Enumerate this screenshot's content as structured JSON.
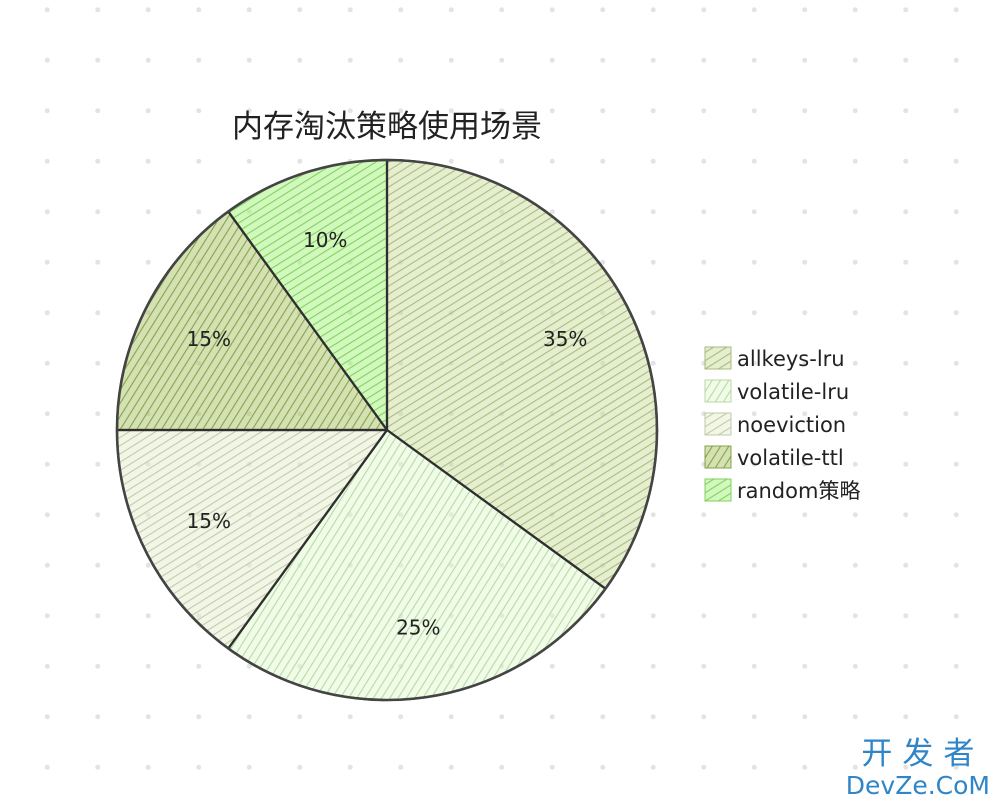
{
  "chart_data": {
    "type": "pie",
    "title": "内存淘汰策略使用场景",
    "categories": [
      "allkeys-lru",
      "volatile-lru",
      "noeviction",
      "volatile-ttl",
      "random策略"
    ],
    "values": [
      35,
      25,
      15,
      15,
      10
    ],
    "labels": [
      "35%",
      "25%",
      "15%",
      "15%",
      "10%"
    ],
    "colors": [
      "#c6da94",
      "#dcf9c8",
      "#e2ecc7",
      "#9ebc56",
      "#9af26e"
    ],
    "legend_position": "right"
  },
  "watermark": {
    "line1": "开发者",
    "line2": "DevZe.CoM"
  }
}
